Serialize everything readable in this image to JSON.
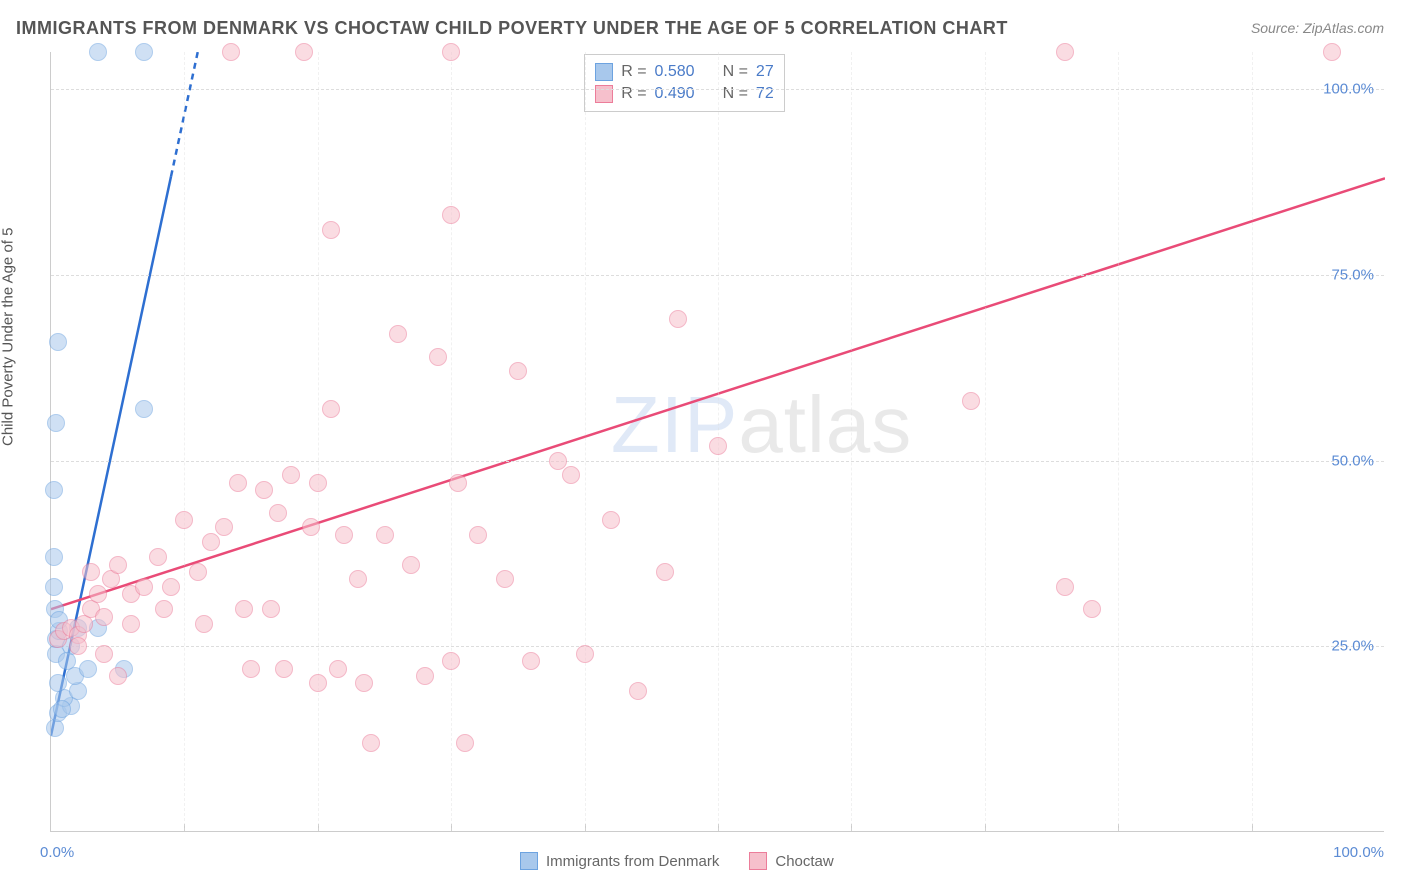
{
  "title": "IMMIGRANTS FROM DENMARK VS CHOCTAW CHILD POVERTY UNDER THE AGE OF 5 CORRELATION CHART",
  "source_label": "Source:",
  "source_name": "ZipAtlas.com",
  "y_axis_title": "Child Poverty Under the Age of 5",
  "watermark": {
    "bold": "ZIP",
    "thin": "atlas"
  },
  "chart": {
    "type": "scatter",
    "xlim": [
      0,
      100
    ],
    "ylim": [
      0,
      105
    ],
    "y_ticks": [
      25,
      50,
      75,
      100
    ],
    "y_tick_labels": [
      "25.0%",
      "50.0%",
      "75.0%",
      "100.0%"
    ],
    "x_ticks": [
      0,
      100
    ],
    "x_tick_labels": [
      "0.0%",
      "100.0%"
    ],
    "x_minor_ticks": [
      10,
      20,
      30,
      40,
      50,
      60,
      70,
      80,
      90
    ],
    "grid_color": "#dddddd",
    "background_color": "#ffffff",
    "axis_color": "#cccccc",
    "label_color": "#5b8bd4",
    "title_color": "#555555",
    "title_fontsize": 18,
    "label_fontsize": 15,
    "marker_radius": 9,
    "marker_opacity": 0.55,
    "series": [
      {
        "name": "Immigrants from Denmark",
        "color_fill": "#a8c8ec",
        "color_stroke": "#6da3e0",
        "R": "0.580",
        "N": "27",
        "trend": {
          "x1": 0,
          "y1": 13,
          "x2": 11,
          "y2": 105,
          "color": "#2e6fd1",
          "width": 2.5,
          "dash_after_x": 9
        },
        "points": [
          [
            0.3,
            14
          ],
          [
            0.5,
            16
          ],
          [
            1.5,
            17
          ],
          [
            1.0,
            18
          ],
          [
            2.0,
            19
          ],
          [
            0.5,
            20
          ],
          [
            1.8,
            21
          ],
          [
            2.8,
            22
          ],
          [
            0.4,
            24
          ],
          [
            1.5,
            25
          ],
          [
            0.4,
            26
          ],
          [
            0.6,
            27
          ],
          [
            2.0,
            27.5
          ],
          [
            3.5,
            27.5
          ],
          [
            5.5,
            22
          ],
          [
            0.2,
            33
          ],
          [
            0.2,
            37
          ],
          [
            0.2,
            46
          ],
          [
            0.4,
            55
          ],
          [
            7.0,
            57
          ],
          [
            0.5,
            66
          ],
          [
            3.5,
            105
          ],
          [
            7.0,
            105
          ],
          [
            0.3,
            30
          ],
          [
            1.2,
            23
          ],
          [
            0.8,
            16.5
          ],
          [
            0.6,
            28.5
          ]
        ]
      },
      {
        "name": "Choctaw",
        "color_fill": "#f6c0cc",
        "color_stroke": "#ec7d9a",
        "R": "0.490",
        "N": "72",
        "trend": {
          "x1": 0,
          "y1": 30,
          "x2": 100,
          "y2": 88,
          "color": "#e94b77",
          "width": 2.5
        },
        "points": [
          [
            0.5,
            26
          ],
          [
            1.0,
            27
          ],
          [
            1.5,
            27.5
          ],
          [
            2.0,
            26.5
          ],
          [
            2.5,
            28
          ],
          [
            2.0,
            25
          ],
          [
            3.0,
            30
          ],
          [
            3.5,
            32
          ],
          [
            4.0,
            29
          ],
          [
            4.5,
            34
          ],
          [
            5.0,
            36
          ],
          [
            6.0,
            32
          ],
          [
            7.0,
            33
          ],
          [
            8.0,
            37
          ],
          [
            9.0,
            33
          ],
          [
            10.0,
            42
          ],
          [
            11.0,
            35
          ],
          [
            12.0,
            39
          ],
          [
            13.0,
            41
          ],
          [
            14.0,
            47
          ],
          [
            15.0,
            22
          ],
          [
            16.0,
            46
          ],
          [
            17.0,
            43
          ],
          [
            18.0,
            48
          ],
          [
            20.0,
            20
          ],
          [
            21.0,
            57
          ],
          [
            22.0,
            40
          ],
          [
            23.0,
            34
          ],
          [
            24.0,
            12
          ],
          [
            20.0,
            47
          ],
          [
            21.5,
            22
          ],
          [
            16.5,
            30
          ],
          [
            17.5,
            22
          ],
          [
            21.0,
            81
          ],
          [
            25.0,
            40
          ],
          [
            26.0,
            67
          ],
          [
            27.0,
            36
          ],
          [
            28.0,
            21
          ],
          [
            29.0,
            64
          ],
          [
            30.0,
            23
          ],
          [
            30.5,
            47
          ],
          [
            30.0,
            83
          ],
          [
            31.0,
            12
          ],
          [
            32.0,
            40
          ],
          [
            34.0,
            34
          ],
          [
            35.0,
            62
          ],
          [
            36.0,
            23
          ],
          [
            38.0,
            50
          ],
          [
            39.0,
            48
          ],
          [
            40.0,
            24
          ],
          [
            42.0,
            42
          ],
          [
            44.0,
            19
          ],
          [
            46.0,
            35
          ],
          [
            47.0,
            69
          ],
          [
            50.0,
            52
          ],
          [
            76.0,
            33
          ],
          [
            78.0,
            30
          ],
          [
            69.0,
            58
          ],
          [
            76.0,
            105
          ],
          [
            30.0,
            105
          ],
          [
            13.5,
            105
          ],
          [
            19.0,
            105
          ],
          [
            96.0,
            105
          ],
          [
            4.0,
            24
          ],
          [
            6.0,
            28
          ],
          [
            8.5,
            30
          ],
          [
            3.0,
            35
          ],
          [
            5.0,
            21
          ],
          [
            11.5,
            28
          ],
          [
            14.5,
            30
          ],
          [
            19.5,
            41
          ],
          [
            23.5,
            20
          ]
        ]
      }
    ]
  },
  "legend_top": {
    "R_label": "R =",
    "N_label": "N ="
  },
  "legend_bottom": {
    "items": [
      "Immigrants from Denmark",
      "Choctaw"
    ]
  }
}
